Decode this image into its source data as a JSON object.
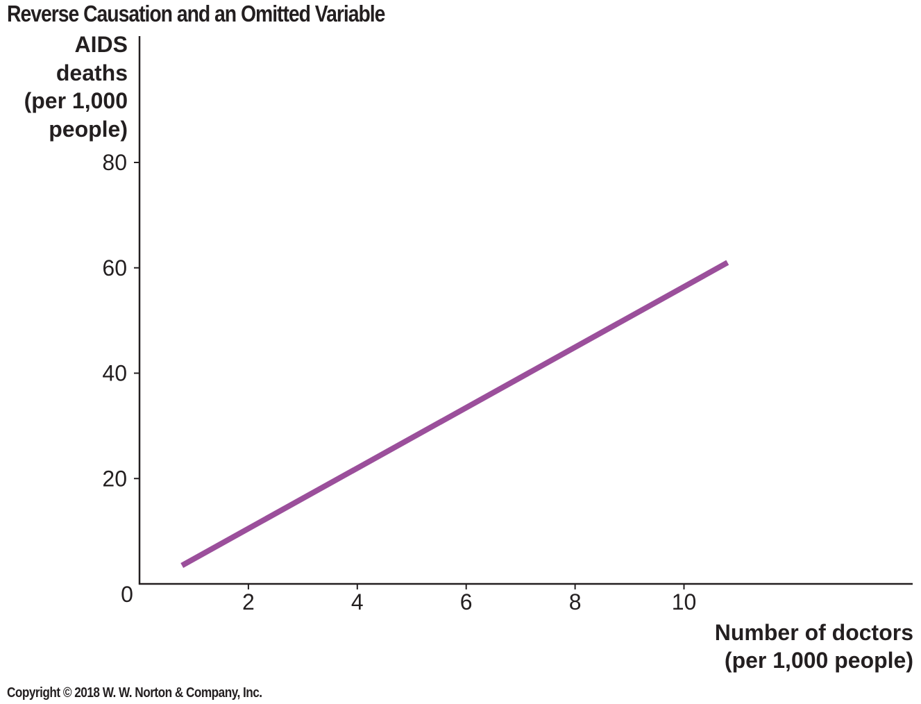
{
  "chart_data": {
    "type": "line",
    "title": "Reverse Causation and an Omitted Variable",
    "ylabel_lines": [
      "AIDS",
      "deaths",
      "(per 1,000",
      "people)"
    ],
    "xlabel_lines": [
      "Number of doctors",
      "(per 1,000 people)"
    ],
    "xlim": [
      0,
      14.2
    ],
    "ylim": [
      0,
      80
    ],
    "xticks": [
      2,
      4,
      6,
      8,
      10
    ],
    "yticks": [
      20,
      40,
      60,
      80
    ],
    "origin_label": "0",
    "grid": false,
    "series": [
      {
        "color": "#9b4f9b",
        "x": [
          0.78,
          10.8
        ],
        "y": [
          3.5,
          61
        ]
      }
    ]
  },
  "footer": {
    "copyright": "Copyright © 2018 W. W. Norton & Company, Inc."
  }
}
